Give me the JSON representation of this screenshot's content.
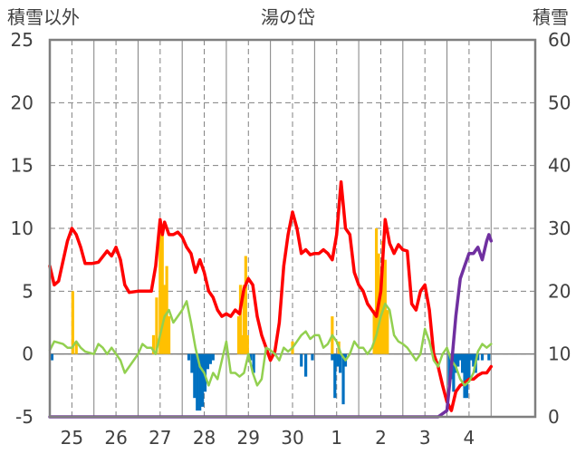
{
  "chart_data": {
    "type": "line",
    "title": "湯の岱",
    "left_axis_label": "積雪以外",
    "right_axis_label": "積雪",
    "left_ylim": [
      -5,
      25
    ],
    "left_yticks": [
      25,
      20,
      15,
      10,
      5,
      0,
      -5
    ],
    "right_ylim": [
      0,
      60
    ],
    "right_yticks": [
      60,
      50,
      40,
      30,
      20,
      10,
      0
    ],
    "xlim": [
      24.5,
      35.5
    ],
    "x_categories": [
      "25",
      "26",
      "27",
      "28",
      "29",
      "30",
      "1",
      "2",
      "3",
      "4"
    ],
    "x_category_positions": [
      25,
      26,
      27,
      28,
      29,
      30,
      31,
      32,
      33,
      34
    ],
    "grid": true,
    "colors": {
      "temperature": "#ff0000",
      "humidity_like": "#92d050",
      "precipitation": "#ffc000",
      "snow_depth_change": "#0070c0",
      "snow_depth": "#7030a0",
      "grid": "#808080",
      "frame": "#7f7f7f"
    },
    "series": [
      {
        "key": "temperature",
        "axis": "left",
        "x": [
          24.5,
          24.6,
          24.7,
          24.9,
          25.0,
          25.1,
          25.2,
          25.3,
          25.45,
          25.6,
          25.8,
          25.9,
          26.0,
          26.1,
          26.2,
          26.3,
          26.5,
          26.6,
          26.8,
          26.9,
          27.0,
          27.05,
          27.1,
          27.2,
          27.3,
          27.4,
          27.5,
          27.6,
          27.7,
          27.8,
          27.9,
          28.0,
          28.1,
          28.2,
          28.3,
          28.4,
          28.5,
          28.6,
          28.7,
          28.8,
          28.9,
          29.0,
          29.1,
          29.2,
          29.3,
          29.4,
          29.5,
          29.6,
          29.7,
          29.8,
          29.9,
          30.0,
          30.1,
          30.2,
          30.3,
          30.4,
          30.5,
          30.6,
          30.7,
          30.8,
          30.9,
          31.0,
          31.1,
          31.2,
          31.3,
          31.4,
          31.5,
          31.6,
          31.7,
          31.8,
          31.9,
          32.0,
          32.1,
          32.2,
          32.3,
          32.4,
          32.5,
          32.6,
          32.7,
          32.8,
          32.9,
          33.0,
          33.1,
          33.2,
          33.3,
          33.4,
          33.5,
          33.6,
          33.7,
          33.8,
          33.9,
          34.0,
          34.1,
          34.2,
          34.3,
          34.4,
          34.5
        ],
        "values": [
          7,
          5.5,
          5.8,
          9,
          10,
          9.5,
          8.5,
          7.2,
          7.2,
          7.3,
          8.2,
          7.8,
          8.5,
          7.5,
          5.5,
          4.9,
          5.0,
          5.0,
          5.0,
          7.0,
          10.7,
          9.5,
          10.5,
          9.5,
          9.5,
          9.7,
          9.3,
          8.5,
          8.0,
          6.5,
          7.5,
          6.5,
          5.0,
          4.5,
          3.5,
          3.0,
          3.2,
          3.0,
          3.5,
          3.2,
          5.2,
          6.0,
          5.5,
          3.0,
          1.5,
          0.5,
          -0.5,
          0.2,
          2.5,
          7.0,
          9.5,
          11.3,
          10.0,
          8.0,
          8.3,
          7.9,
          8.0,
          8.0,
          8.3,
          8.0,
          7.5,
          9.5,
          13.7,
          10.0,
          9.5,
          6.5,
          5.5,
          5.0,
          4.0,
          3.5,
          3.0,
          5.0,
          10.7,
          8.8,
          8.0,
          8.7,
          8.3,
          8.2,
          4.0,
          3.5,
          5.0,
          5.5,
          3.5,
          0.0,
          -1.0,
          -2.5,
          -3.8,
          -4.5,
          -3.0,
          -2.5,
          -2.3,
          -2.0,
          -2.0,
          -1.7,
          -1.5,
          -1.5,
          -1.0
        ]
      },
      {
        "key": "humidity_like",
        "axis": "left",
        "x": [
          24.5,
          24.6,
          24.8,
          24.9,
          25.0,
          25.1,
          25.2,
          25.3,
          25.5,
          25.6,
          25.7,
          25.8,
          25.9,
          26.0,
          26.1,
          26.2,
          26.4,
          26.5,
          26.6,
          26.7,
          26.8,
          26.9,
          27.0,
          27.1,
          27.2,
          27.3,
          27.4,
          27.5,
          27.6,
          27.7,
          27.8,
          27.9,
          28.0,
          28.1,
          28.2,
          28.3,
          28.4,
          28.5,
          28.6,
          28.7,
          28.8,
          28.9,
          29.0,
          29.1,
          29.2,
          29.3,
          29.4,
          29.5,
          29.6,
          29.7,
          29.8,
          29.9,
          30.0,
          30.1,
          30.2,
          30.3,
          30.4,
          30.5,
          30.6,
          30.7,
          30.8,
          30.9,
          31.0,
          31.1,
          31.2,
          31.3,
          31.4,
          31.5,
          31.6,
          31.7,
          31.8,
          31.9,
          32.0,
          32.1,
          32.2,
          32.3,
          32.4,
          32.5,
          32.6,
          32.7,
          32.8,
          32.9,
          33.0,
          33.1,
          33.2,
          33.3,
          33.4,
          33.5,
          33.6,
          33.7,
          33.8,
          33.9,
          34.0,
          34.1,
          34.2,
          34.3,
          34.4,
          34.5
        ],
        "values": [
          0.3,
          1.0,
          0.8,
          0.5,
          0.5,
          1.0,
          0.5,
          0.2,
          0.0,
          0.8,
          0.5,
          0.0,
          0.5,
          0.0,
          -0.5,
          -1.5,
          -0.5,
          0.0,
          0.8,
          0.5,
          0.5,
          0.0,
          1.5,
          3.0,
          3.5,
          2.5,
          3.0,
          3.5,
          4.2,
          2.5,
          0.5,
          -1.0,
          -1.5,
          -2.5,
          -1.5,
          -2.0,
          -0.5,
          1.0,
          -1.5,
          -1.5,
          -1.8,
          -1.5,
          0.0,
          -1.5,
          -2.5,
          -2.0,
          0.5,
          0.3,
          0.0,
          -0.5,
          0.5,
          0.2,
          0.5,
          1.0,
          1.5,
          1.8,
          1.2,
          1.5,
          1.5,
          0.5,
          0.8,
          1.5,
          1.0,
          0.0,
          -0.5,
          0.0,
          1.0,
          0.5,
          0.5,
          0.0,
          0.5,
          1.5,
          3.0,
          4.0,
          3.5,
          1.5,
          1.0,
          0.8,
          0.5,
          0.0,
          -0.5,
          0.0,
          2.0,
          1.0,
          -0.5,
          -1.0,
          0.0,
          0.5,
          -0.5,
          -1.0,
          -2.0,
          -2.5,
          -2.2,
          -1.5,
          0.2,
          0.8,
          0.5,
          0.8
        ]
      },
      {
        "key": "snow_depth",
        "axis": "right",
        "x": [
          24.5,
          25.0,
          26.0,
          27.0,
          28.0,
          29.0,
          30.0,
          31.0,
          32.0,
          33.0,
          33.3,
          33.5,
          33.6,
          33.7,
          33.8,
          33.9,
          34.0,
          34.1,
          34.2,
          34.3,
          34.4,
          34.45,
          34.5
        ],
        "values": [
          0,
          0,
          0,
          0,
          0,
          0,
          0,
          0,
          0,
          0,
          0,
          1,
          8,
          16,
          22,
          24,
          26,
          26,
          27,
          25,
          28,
          29,
          28
        ]
      }
    ],
    "bar_series": [
      {
        "key": "precipitation",
        "axis": "left",
        "x": [
          25.02,
          25.1,
          26.85,
          26.92,
          27.0,
          27.05,
          27.1,
          27.15,
          27.2,
          28.78,
          28.82,
          28.86,
          28.9,
          28.94,
          28.98,
          30.0,
          30.9,
          31.05,
          31.85,
          31.9,
          31.95,
          32.0,
          32.05,
          32.1,
          32.15
        ],
        "values": [
          5.0,
          1.0,
          1.5,
          4.5,
          10.0,
          9.5,
          5.5,
          7.0,
          3.0,
          3.0,
          5.5,
          1.5,
          5.5,
          7.8,
          1.5,
          1.0,
          3.0,
          1.0,
          3.5,
          10.0,
          8.0,
          5.5,
          9.0,
          7.5,
          3.5
        ]
      },
      {
        "key": "snow_depth_change",
        "axis": "left",
        "x": [
          24.55,
          27.65,
          27.72,
          27.78,
          27.84,
          27.9,
          27.96,
          28.02,
          28.08,
          28.14,
          28.2,
          29.05,
          29.12,
          30.2,
          30.3,
          30.45,
          30.9,
          30.96,
          31.02,
          31.08,
          31.15,
          31.2,
          33.55,
          33.6,
          33.65,
          33.7,
          33.75,
          33.8,
          33.85,
          33.9,
          33.95,
          34.0,
          34.05,
          34.1,
          34.15,
          34.2,
          34.3,
          34.45
        ],
        "values": [
          -0.5,
          -0.5,
          -1.5,
          -3.5,
          -4.5,
          -4.5,
          -4.2,
          -3.0,
          -1.2,
          -0.8,
          -0.5,
          -0.5,
          -1.5,
          -1.0,
          -1.8,
          -0.5,
          -0.5,
          -3.5,
          -1.0,
          -1.5,
          -4.0,
          -1.0,
          -2.5,
          -2.0,
          -3.0,
          -1.5,
          -1.0,
          -0.5,
          -1.5,
          -3.5,
          -3.5,
          -2.0,
          -0.5,
          -1.0,
          -1.5,
          -0.5,
          -0.5,
          -0.5
        ]
      }
    ]
  }
}
